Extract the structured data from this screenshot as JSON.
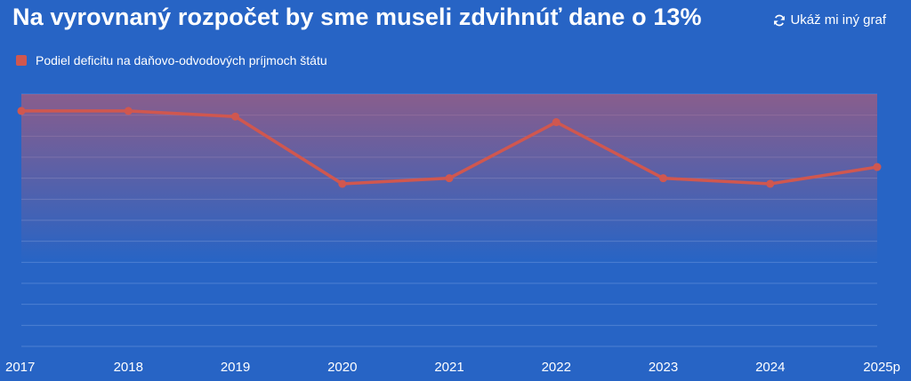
{
  "header": {
    "title": "Na vyrovnaný rozpočet by sme museli zdvihnúť dane o 13%",
    "switch_label": "Ukáž mi iný graf",
    "switch_icon": "refresh-icon"
  },
  "colors": {
    "background": "#2764c5",
    "series": "#d0574f",
    "band_top": "#c4596a",
    "grid": "#4d80d2"
  },
  "chart_data": {
    "type": "line",
    "x": [
      "2017",
      "2018",
      "2019",
      "2020",
      "2021",
      "2022",
      "2023",
      "2024",
      "2025p"
    ],
    "series": [
      {
        "name": "Podiel deficitu na daňovo-odvodových príjmoch štátu",
        "values": [
          10.8,
          10.8,
          10.4,
          5.6,
          6.0,
          10.0,
          6.0,
          5.6,
          6.8
        ]
      }
    ],
    "ylim": [
      -6,
      12
    ],
    "grid": true,
    "legend": "top-left",
    "yticks_shown": false
  }
}
